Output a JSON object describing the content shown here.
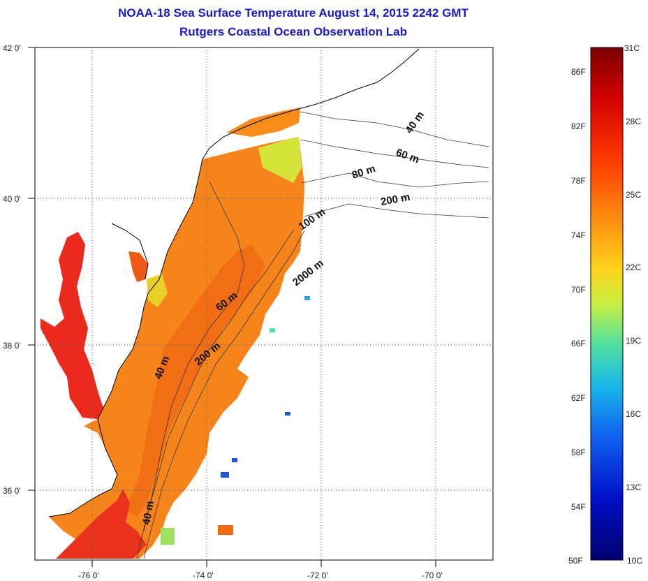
{
  "header": {
    "title": "NOAA-18 Sea Surface Temperature August 14, 2015 2242 GMT",
    "subtitle": "Rutgers Coastal Ocean Observation Lab"
  },
  "map": {
    "lat_ticks": [
      "42 0'",
      "40 0'",
      "38 0'",
      "36 0'"
    ],
    "lon_ticks": [
      "-76 0'",
      "-74 0'",
      "-72 0'",
      "-70 0'"
    ],
    "contour_labels": [
      "40 m",
      "60 m",
      "80 m",
      "200 m",
      "100 m",
      "2000 m",
      "60 m",
      "200 m",
      "40 m",
      "40 m"
    ]
  },
  "colorbar": {
    "f_labels": [
      "86F",
      "82F",
      "78F",
      "74F",
      "70F",
      "66F",
      "62F",
      "58F",
      "54F",
      "50F"
    ],
    "c_labels": [
      "31C",
      "28C",
      "25C",
      "22C",
      "19C",
      "16C",
      "13C",
      "10C"
    ],
    "colors": [
      "#7a0000",
      "#d40000",
      "#ff3a00",
      "#ff8a10",
      "#ffd21a",
      "#c8f040",
      "#50e0a0",
      "#18b8e8",
      "#1060f0",
      "#0010c8",
      "#000070"
    ]
  }
}
